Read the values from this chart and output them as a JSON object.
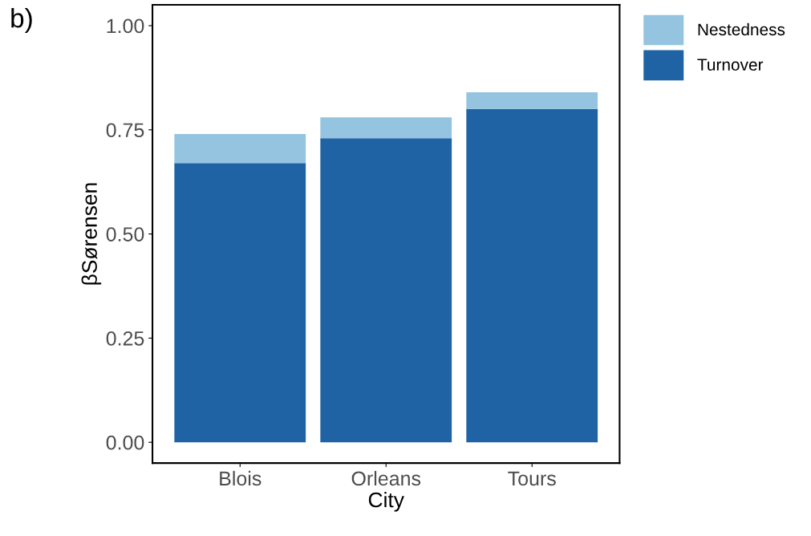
{
  "chart_data": {
    "type": "bar",
    "stacked": true,
    "xlabel": "City",
    "ylabel": "βSørensen",
    "categories": [
      "Blois",
      "Orleans",
      "Tours"
    ],
    "series": [
      {
        "name": "Turnover",
        "color": "#1f63a4",
        "values": [
          0.67,
          0.73,
          0.8
        ]
      },
      {
        "name": "Nestedness",
        "color": "#94c4df",
        "values": [
          0.07,
          0.05,
          0.04
        ]
      }
    ],
    "ylim": [
      -0.05,
      1.05
    ],
    "yticks": [
      {
        "value": 0,
        "label": "0.00"
      },
      {
        "value": 0.25,
        "label": "0.25"
      },
      {
        "value": 0.5,
        "label": "0.50"
      },
      {
        "value": 0.75,
        "label": "0.75"
      },
      {
        "value": 1,
        "label": "1.00"
      }
    ],
    "grid": false,
    "legend": "top right",
    "annotations": [
      "b)"
    ]
  }
}
